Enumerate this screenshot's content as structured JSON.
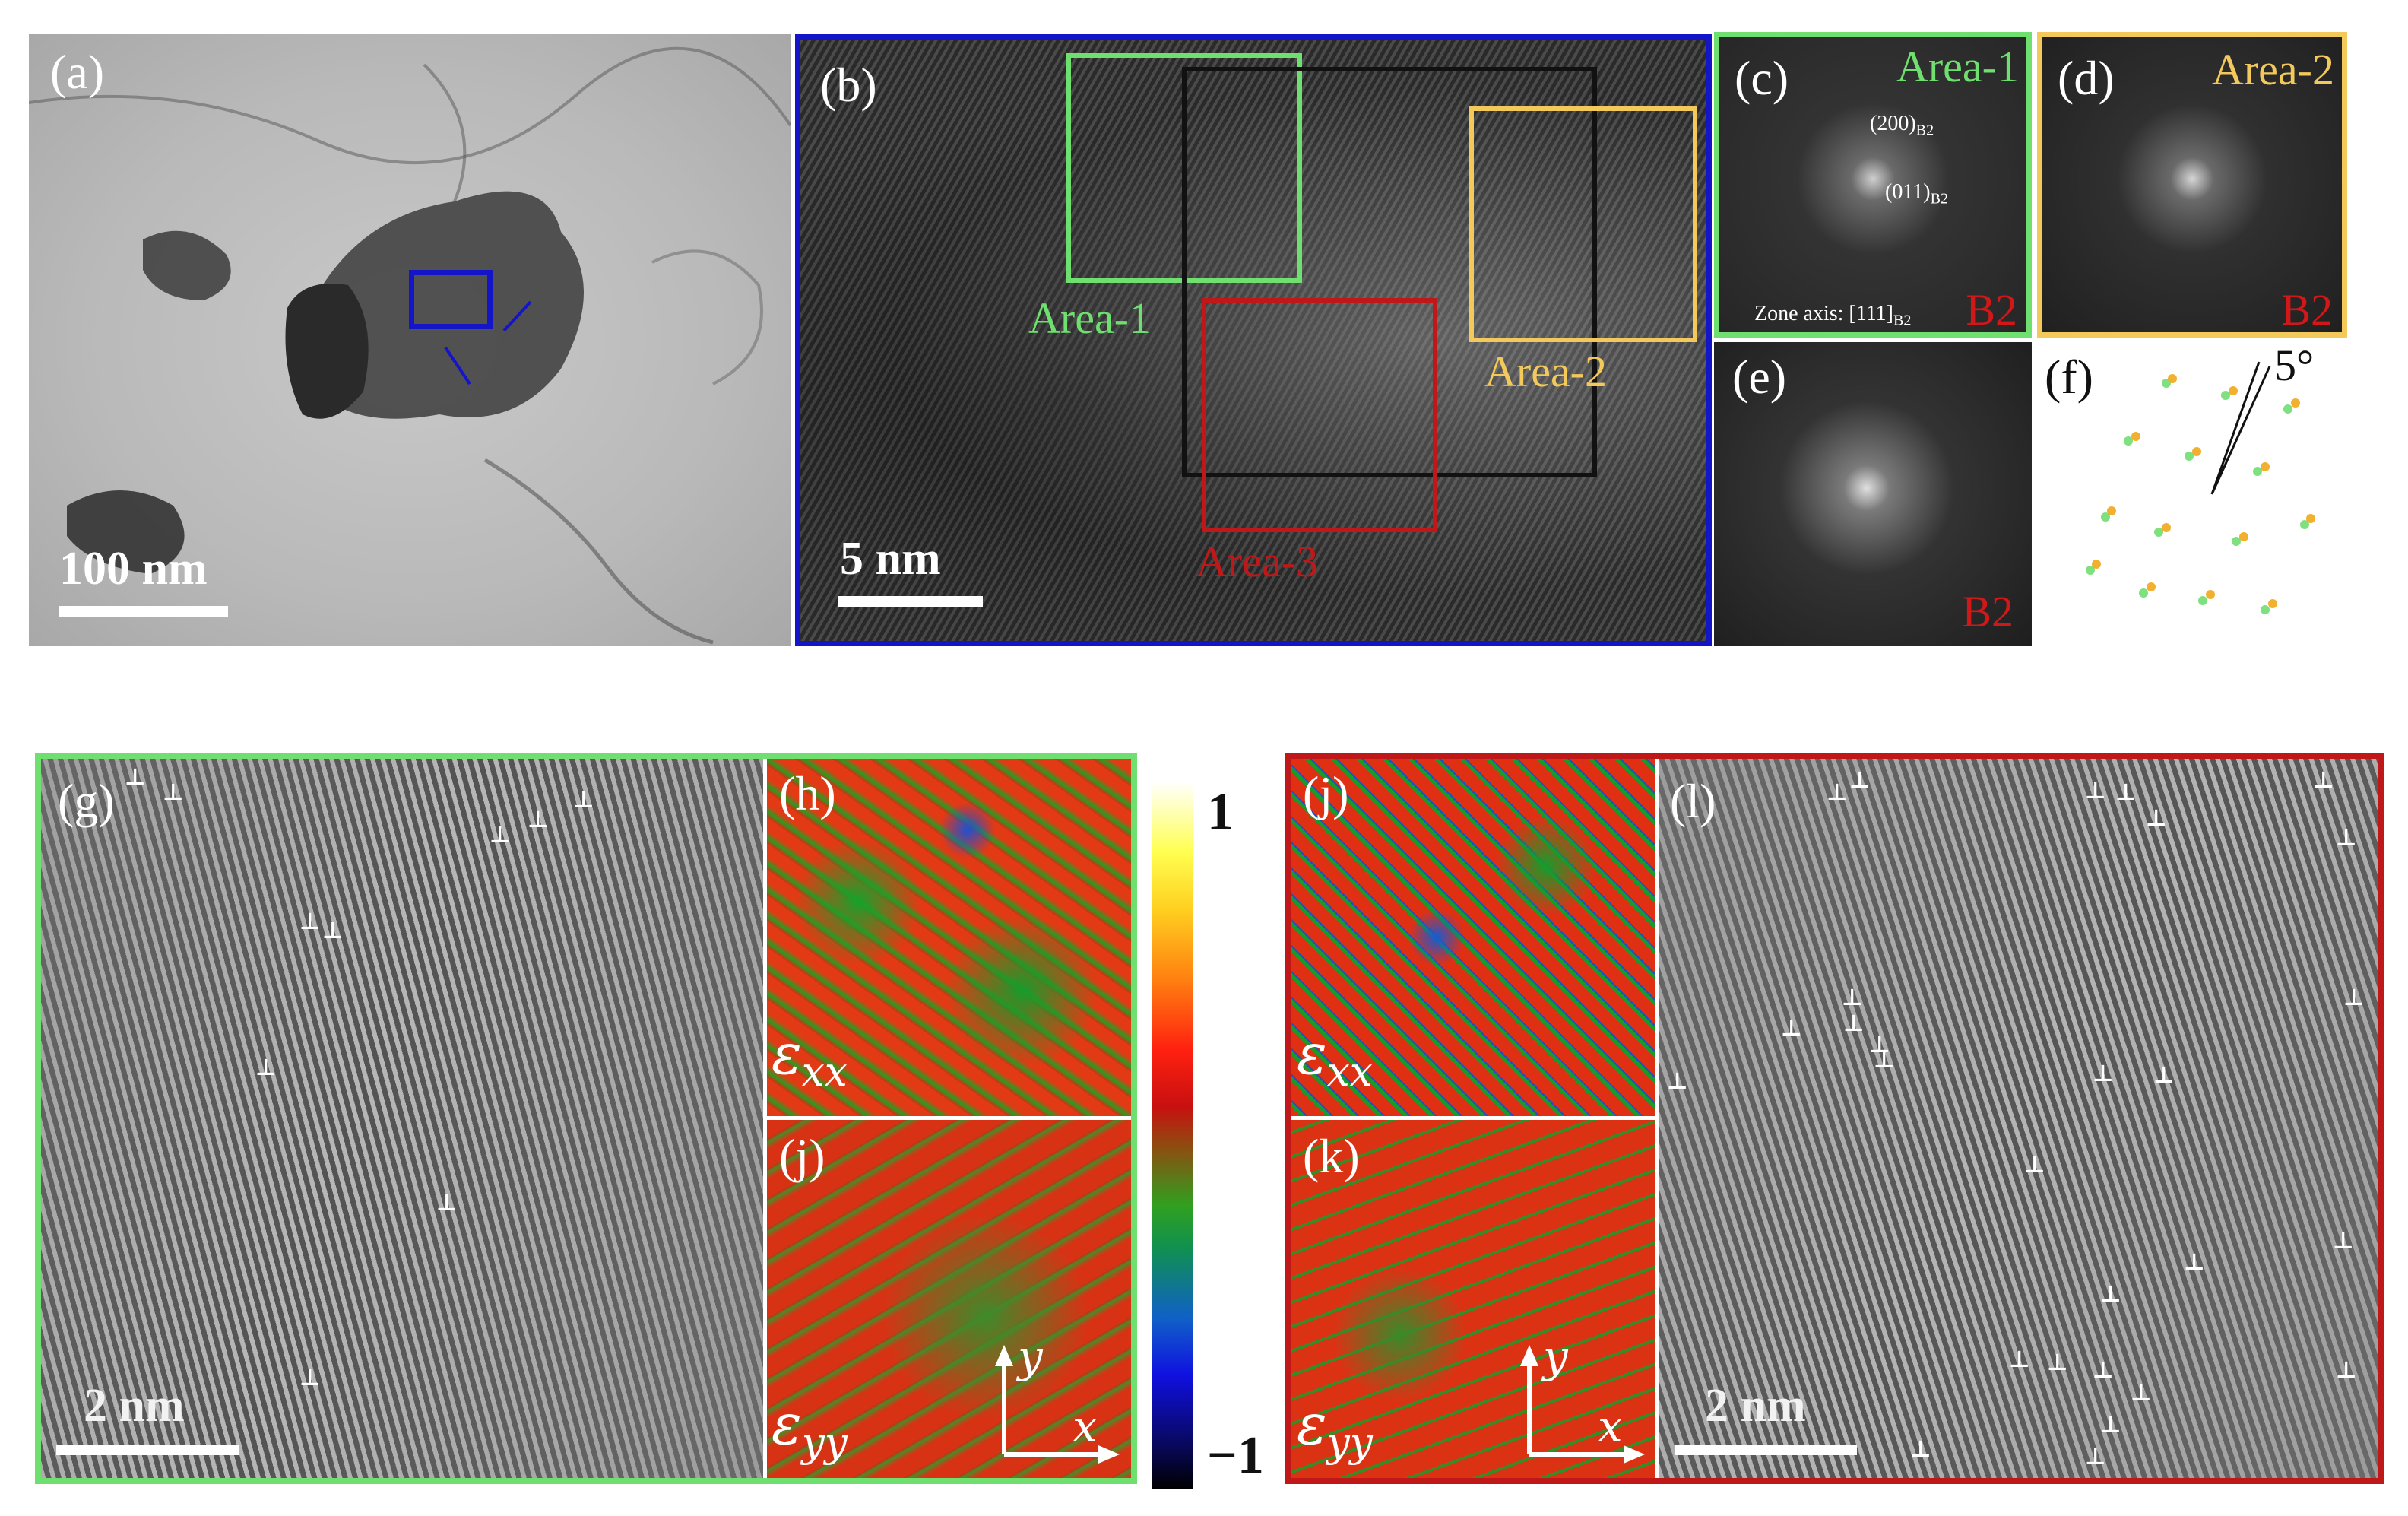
{
  "panels": {
    "a": {
      "label": "(a)",
      "scale": "100 nm"
    },
    "b": {
      "label": "(b)",
      "scale": "5 nm",
      "area1": "Area-1",
      "area2": "Area-2",
      "area3": "Area-3"
    },
    "c": {
      "label": "(c)",
      "title": "Area-1",
      "phase": "B2",
      "idx1": "(200)",
      "idx1_sub": "B2",
      "idx2": "(011)",
      "idx2_sub": "B2",
      "zone": "Zone axis: [111]",
      "zone_sub": "B2"
    },
    "d": {
      "label": "(d)",
      "title": "Area-2",
      "phase": "B2"
    },
    "e": {
      "label": "(e)",
      "phase": "B2"
    },
    "f": {
      "label": "(f)",
      "angle": "5°"
    },
    "g": {
      "label": "(g)",
      "scale": "2 nm"
    },
    "h": {
      "label": "(h)",
      "eps": "ε",
      "eps_sub": "xx"
    },
    "j1": {
      "label": "(j)",
      "eps": "ε",
      "eps_sub": "yy"
    },
    "colorbar": {
      "max": "1",
      "min": "−1"
    },
    "j2": {
      "label": "(j)",
      "eps": "ε",
      "eps_sub": "xx"
    },
    "k": {
      "label": "(k)",
      "eps": "ε",
      "eps_sub": "yy"
    },
    "l": {
      "label": "(l)",
      "scale": "2 nm"
    },
    "axes": {
      "x": "x",
      "y": "y"
    },
    "dislocation_symbol": "⊥"
  },
  "colors": {
    "blue": "#1515c8",
    "green": "#6fe06f",
    "yellow": "#f2c95a",
    "red": "#c01818",
    "black": "#111111"
  }
}
